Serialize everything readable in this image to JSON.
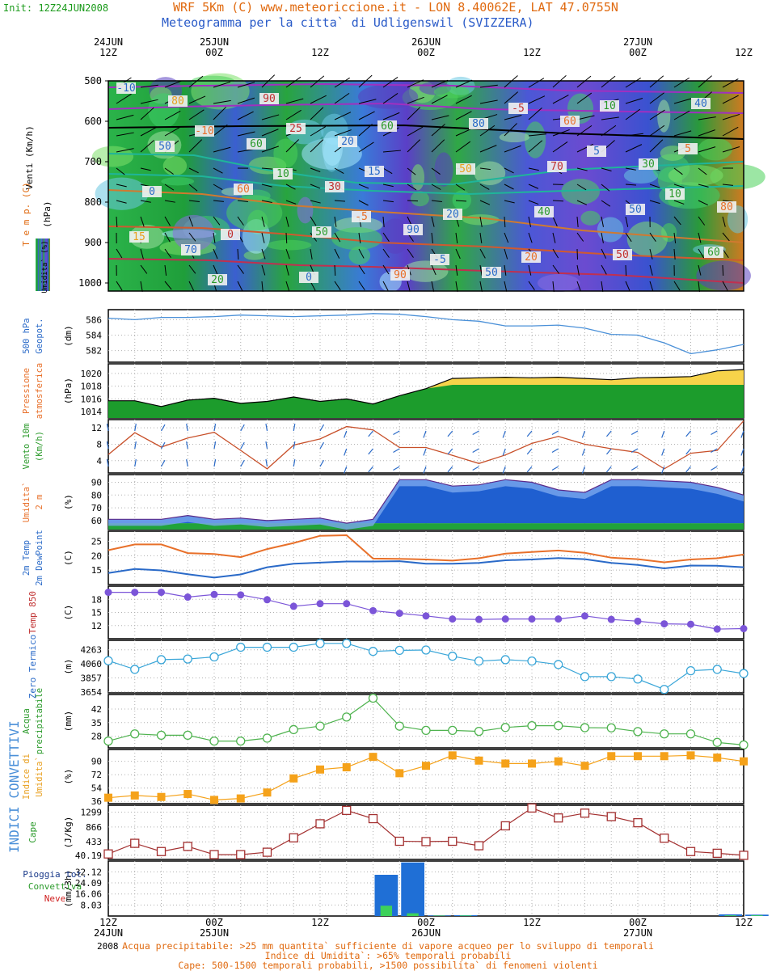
{
  "header": {
    "init": "Init: 12Z24JUN2008",
    "title1": "WRF 5Km (C) www.meteoriccione.it - LON 8.40062E, LAT 47.0755N",
    "title2": "Meteogramma per la citta` di Udligenswil (SVIZZERA)"
  },
  "time_axis": {
    "top_labels": [
      [
        "24JUN",
        "12Z"
      ],
      [
        "25JUN",
        "00Z"
      ],
      [
        "",
        "12Z"
      ],
      [
        "26JUN",
        "00Z"
      ],
      [
        "",
        "12Z"
      ],
      [
        "27JUN",
        "00Z"
      ],
      [
        "",
        "12Z"
      ]
    ],
    "bottom_labels": [
      [
        "12Z",
        "24JUN"
      ],
      [
        "00Z",
        "25JUN"
      ],
      [
        "12Z",
        ""
      ],
      [
        "00Z",
        "26JUN"
      ],
      [
        "12Z",
        ""
      ],
      [
        "00Z",
        "27JUN"
      ],
      [
        "12Z",
        ""
      ]
    ],
    "year": "2008"
  },
  "side_label": "INDICI CONVETTIVI",
  "notes": [
    "Acqua precipitabile: >25 mm quantita` sufficiente di vapore acqueo per lo sviluppo di temporali",
    "Indice di Umidita`: >65% temporali probabili",
    "Cape: 500-1500 temporali probabili, >1500 possibilita` di fenomeni violenti"
  ],
  "colors": {
    "temp_line": "#e8702a",
    "dew_line": "#2a6ac8",
    "t850": "#7b55d8",
    "zero": "#3aa6d8",
    "pw": "#4fb34f",
    "ui": "#f5a21a",
    "cape": "#a33030",
    "rain": "#1f6fd6",
    "conv": "#3dd15a",
    "press_fill": "#1c9c2c",
    "press_top": "#f7d34a"
  },
  "chart_data": [
    {
      "type": "heatmap",
      "name": "sezione-verticale",
      "ylabels": [
        "Venti (Km/h)",
        "T e m p. (C)",
        "Umidita` (%)"
      ],
      "yunit": "(hPa)",
      "y_ticks": [
        500,
        600,
        700,
        800,
        900,
        1000
      ],
      "ylim": [
        500,
        1020
      ],
      "contour_labels": [
        "-10",
        "-10",
        "10",
        "-5",
        "-5",
        "-5",
        "5",
        "10",
        "15",
        "20",
        "25",
        "15",
        "20",
        "20",
        "10",
        "5",
        "0",
        "0",
        "0",
        "60",
        "50",
        "40",
        "50",
        "40",
        "50",
        "60",
        "50",
        "90",
        "80",
        "70",
        "50",
        "60",
        "80",
        "60",
        "30",
        "90",
        "50",
        "60",
        "30",
        "80",
        "70",
        "90",
        "20"
      ]
    },
    {
      "type": "line",
      "name": "geopotenziale",
      "ylabels": [
        "500 hPa",
        "Geopot."
      ],
      "yunit": "(dm)",
      "y_ticks": [
        582,
        584,
        586
      ],
      "ylim": [
        580.5,
        587.3
      ],
      "x": [
        0,
        1,
        2,
        3,
        4,
        5,
        6,
        7,
        8,
        9,
        10,
        11,
        12,
        13,
        14,
        15,
        16,
        17,
        18,
        19,
        20,
        21,
        22,
        23,
        24
      ],
      "series": [
        {
          "values": [
            586.2,
            586.0,
            586.3,
            586.3,
            586.4,
            586.6,
            586.5,
            586.4,
            586.5,
            586.6,
            586.8,
            586.7,
            586.4,
            586.0,
            585.8,
            585.2,
            585.2,
            585.3,
            584.9,
            584.1,
            584.0,
            583.0,
            581.6,
            582.1,
            582.8
          ]
        }
      ]
    },
    {
      "type": "area",
      "name": "pressione",
      "ylabels": [
        "Pressione",
        "atmosferica"
      ],
      "yunit": "(hPa)",
      "y_ticks": [
        1014,
        1016,
        1018,
        1020
      ],
      "ylim": [
        1013,
        1021.5
      ],
      "x": [
        0,
        1,
        2,
        3,
        4,
        5,
        6,
        7,
        8,
        9,
        10,
        11,
        12,
        13,
        14,
        15,
        16,
        17,
        18,
        19,
        20,
        21,
        22,
        23,
        24
      ],
      "series": [
        {
          "values": [
            1015.7,
            1015.7,
            1014.8,
            1015.8,
            1016.1,
            1015.3,
            1015.6,
            1016.3,
            1015.6,
            1016.0,
            1015.2,
            1016.5,
            1017.6,
            1019.2,
            1019.3,
            1019.4,
            1019.3,
            1019.4,
            1019.2,
            1019.0,
            1019.3,
            1019.4,
            1019.5,
            1020.4,
            1020.6
          ]
        }
      ]
    },
    {
      "type": "line",
      "name": "vento-10m",
      "ylabels": [
        "Vento 10m",
        "(Km/h)"
      ],
      "y_ticks": [
        4,
        8,
        12
      ],
      "ylim": [
        1,
        14
      ],
      "x": [
        0,
        1,
        2,
        3,
        4,
        5,
        6,
        7,
        8,
        9,
        10,
        11,
        12,
        13,
        14,
        15,
        16,
        17,
        18,
        19,
        20,
        21,
        22,
        23,
        24
      ],
      "series": [
        {
          "values": [
            5.5,
            10.8,
            7.3,
            9.5,
            10.9,
            6.5,
            2.0,
            7.8,
            9.3,
            12.3,
            11.5,
            7.2,
            7.2,
            5.3,
            3.3,
            5.4,
            8.2,
            9.9,
            8.0,
            6.9,
            6.0,
            2.0,
            5.8,
            6.5,
            13.7
          ]
        }
      ]
    },
    {
      "type": "area",
      "name": "umidita-2m",
      "ylabels": [
        "Umidita`",
        "2 m"
      ],
      "yunit": "(%)",
      "y_ticks": [
        60,
        70,
        80,
        90
      ],
      "ylim": [
        53,
        96
      ],
      "x": [
        0,
        1,
        2,
        3,
        4,
        5,
        6,
        7,
        8,
        9,
        10,
        11,
        12,
        13,
        14,
        15,
        16,
        17,
        18,
        19,
        20,
        21,
        22,
        23,
        24
      ],
      "series": [
        {
          "values": [
            61,
            61,
            61,
            64,
            61,
            62,
            60,
            61,
            62,
            58,
            61,
            92,
            92,
            87,
            88,
            92,
            90,
            84,
            82,
            92,
            92,
            91,
            90,
            86,
            80
          ]
        }
      ]
    },
    {
      "type": "line",
      "name": "temp-dew-2m",
      "ylabels": [
        "2m Temp",
        "2m DewPoint"
      ],
      "yunit": "(C)",
      "y_ticks": [
        15,
        20,
        25
      ],
      "ylim": [
        10,
        28.5
      ],
      "x": [
        0,
        1,
        2,
        3,
        4,
        5,
        6,
        7,
        8,
        9,
        10,
        11,
        12,
        13,
        14,
        15,
        16,
        17,
        18,
        19,
        20,
        21,
        22,
        23,
        24
      ],
      "series": [
        {
          "values": [
            21.9,
            23.9,
            23.9,
            20.9,
            20.6,
            19.5,
            22.3,
            24.4,
            26.9,
            27.1,
            19.0,
            18.9,
            18.7,
            18.3,
            19.1,
            20.7,
            21.3,
            21.8,
            21.0,
            19.3,
            18.8,
            17.7,
            18.7,
            19.1,
            20.4
          ]
        },
        {
          "values": [
            14.0,
            15.4,
            14.9,
            13.6,
            12.4,
            13.5,
            16.0,
            17.2,
            17.6,
            18.0,
            18.0,
            18.1,
            17.2,
            17.2,
            17.5,
            18.4,
            18.7,
            19.2,
            18.8,
            17.5,
            16.8,
            15.6,
            16.6,
            16.5,
            16.0
          ]
        }
      ]
    },
    {
      "type": "scatter",
      "name": "temp-850",
      "ylabels": [
        "Temp 850"
      ],
      "yunit": "(C)",
      "y_ticks": [
        12,
        15,
        18
      ],
      "ylim": [
        9,
        21
      ],
      "x": [
        0,
        1,
        2,
        3,
        4,
        5,
        6,
        7,
        8,
        9,
        10,
        11,
        12,
        13,
        14,
        15,
        16,
        17,
        18,
        19,
        20,
        21,
        22,
        23,
        24
      ],
      "series": [
        {
          "values": [
            19.6,
            19.6,
            19.6,
            18.5,
            19.1,
            19.0,
            17.9,
            16.4,
            17.0,
            17.0,
            15.4,
            14.8,
            14.2,
            13.5,
            13.4,
            13.5,
            13.5,
            13.5,
            14.2,
            13.4,
            13.0,
            12.4,
            12.3,
            11.2,
            11.3
          ]
        }
      ]
    },
    {
      "type": "scatter",
      "name": "zero-termico",
      "ylabels": [
        "Zero Termico"
      ],
      "yunit": "(m)",
      "y_ticks": [
        3654,
        3857,
        4060,
        4263
      ],
      "ylim": [
        3640,
        4400
      ],
      "x": [
        0,
        1,
        2,
        3,
        4,
        5,
        6,
        7,
        8,
        9,
        10,
        11,
        12,
        13,
        14,
        15,
        16,
        17,
        18,
        19,
        20,
        21,
        22,
        23,
        24
      ],
      "series": [
        {
          "values": [
            4105,
            3980,
            4120,
            4130,
            4160,
            4300,
            4300,
            4300,
            4355,
            4355,
            4240,
            4255,
            4260,
            4170,
            4100,
            4120,
            4100,
            4050,
            3875,
            3875,
            3840,
            3690,
            3960,
            3980,
            3920
          ]
        }
      ]
    },
    {
      "type": "scatter",
      "name": "acqua-precipitabile",
      "ylabels": [
        "Acqua",
        "precipitabile"
      ],
      "yunit": "(mm)",
      "y_ticks": [
        28,
        35,
        42
      ],
      "ylim": [
        22,
        49.5
      ],
      "x": [
        0,
        1,
        2,
        3,
        4,
        5,
        6,
        7,
        8,
        9,
        10,
        11,
        12,
        13,
        14,
        15,
        16,
        17,
        18,
        19,
        20,
        21,
        22,
        23,
        24
      ],
      "series": [
        {
          "values": [
            25.5,
            29.2,
            28.5,
            28.5,
            25.5,
            25.5,
            27.0,
            31.4,
            33.2,
            37.9,
            47.6,
            33.2,
            31.0,
            31.0,
            30.5,
            32.5,
            33.4,
            33.4,
            32.4,
            32.3,
            30.4,
            29.2,
            29.2,
            24.8,
            23.5
          ]
        }
      ]
    },
    {
      "type": "scatter",
      "name": "indice-umidita",
      "ylabels": [
        "Indice di",
        "Umidita`"
      ],
      "yunit": "(%)",
      "y_ticks": [
        36,
        54,
        72,
        90
      ],
      "ylim": [
        33,
        106
      ],
      "x": [
        0,
        1,
        2,
        3,
        4,
        5,
        6,
        7,
        8,
        9,
        10,
        11,
        12,
        13,
        14,
        15,
        16,
        17,
        18,
        19,
        20,
        21,
        22,
        23,
        24
      ],
      "series": [
        {
          "values": [
            41,
            44,
            42,
            46,
            38,
            40,
            48,
            67,
            79,
            82,
            96,
            74,
            84,
            98,
            91,
            87,
            87,
            90,
            84,
            97,
            97,
            97,
            98,
            95,
            90
          ]
        }
      ]
    },
    {
      "type": "scatter",
      "name": "cape",
      "ylabels": [
        "Cape"
      ],
      "yunit": "(J/Kg)",
      "y_ticks": [
        40.19,
        433,
        866,
        1299
      ],
      "ylim": [
        -80,
        1500
      ],
      "x": [
        0,
        1,
        2,
        3,
        4,
        5,
        6,
        7,
        8,
        9,
        10,
        11,
        12,
        13,
        14,
        15,
        16,
        17,
        18,
        19,
        20,
        21,
        22,
        23,
        24
      ],
      "series": [
        {
          "values": [
            80,
            390,
            150,
            300,
            60,
            60,
            130,
            550,
            960,
            1350,
            1110,
            450,
            440,
            450,
            320,
            900,
            1420,
            1130,
            1270,
            1170,
            990,
            540,
            150,
            100,
            40
          ]
        }
      ]
    },
    {
      "type": "bar",
      "name": "pioggia",
      "ylabels": [
        "Pioggia tot.",
        "Convettiva",
        "Neve"
      ],
      "yunit": "(mm/3h)",
      "y_ticks": [
        "8.03",
        "16.06",
        "24.09",
        "32.12"
      ],
      "ylim": [
        0,
        40
      ],
      "x": [
        0,
        1,
        2,
        3,
        4,
        5,
        6,
        7,
        8,
        9,
        10,
        11,
        12,
        13,
        14,
        15,
        16,
        17,
        18,
        19,
        20,
        21,
        22,
        23,
        24
      ],
      "series": [
        {
          "name": "Pioggia tot.",
          "values": [
            0,
            0,
            0,
            0,
            0,
            0,
            0,
            0,
            0,
            0,
            30,
            39,
            0.4,
            0.6,
            0,
            0,
            0,
            0,
            0,
            0,
            0,
            0,
            0,
            1.2,
            1.0
          ]
        },
        {
          "name": "Convettiva",
          "values": [
            0,
            0,
            0,
            0,
            0,
            0,
            0,
            0,
            0,
            0,
            7.5,
            2.0,
            0.3,
            0.4,
            0,
            0,
            0,
            0,
            0,
            0,
            0,
            0,
            0,
            0.5,
            0.5
          ]
        },
        {
          "name": "Neve",
          "values": [
            0,
            0,
            0,
            0,
            0,
            0,
            0,
            0,
            0,
            0,
            0,
            0,
            0,
            0,
            0,
            0,
            0,
            0,
            0,
            0,
            0,
            0,
            0,
            0,
            0
          ]
        }
      ]
    }
  ]
}
